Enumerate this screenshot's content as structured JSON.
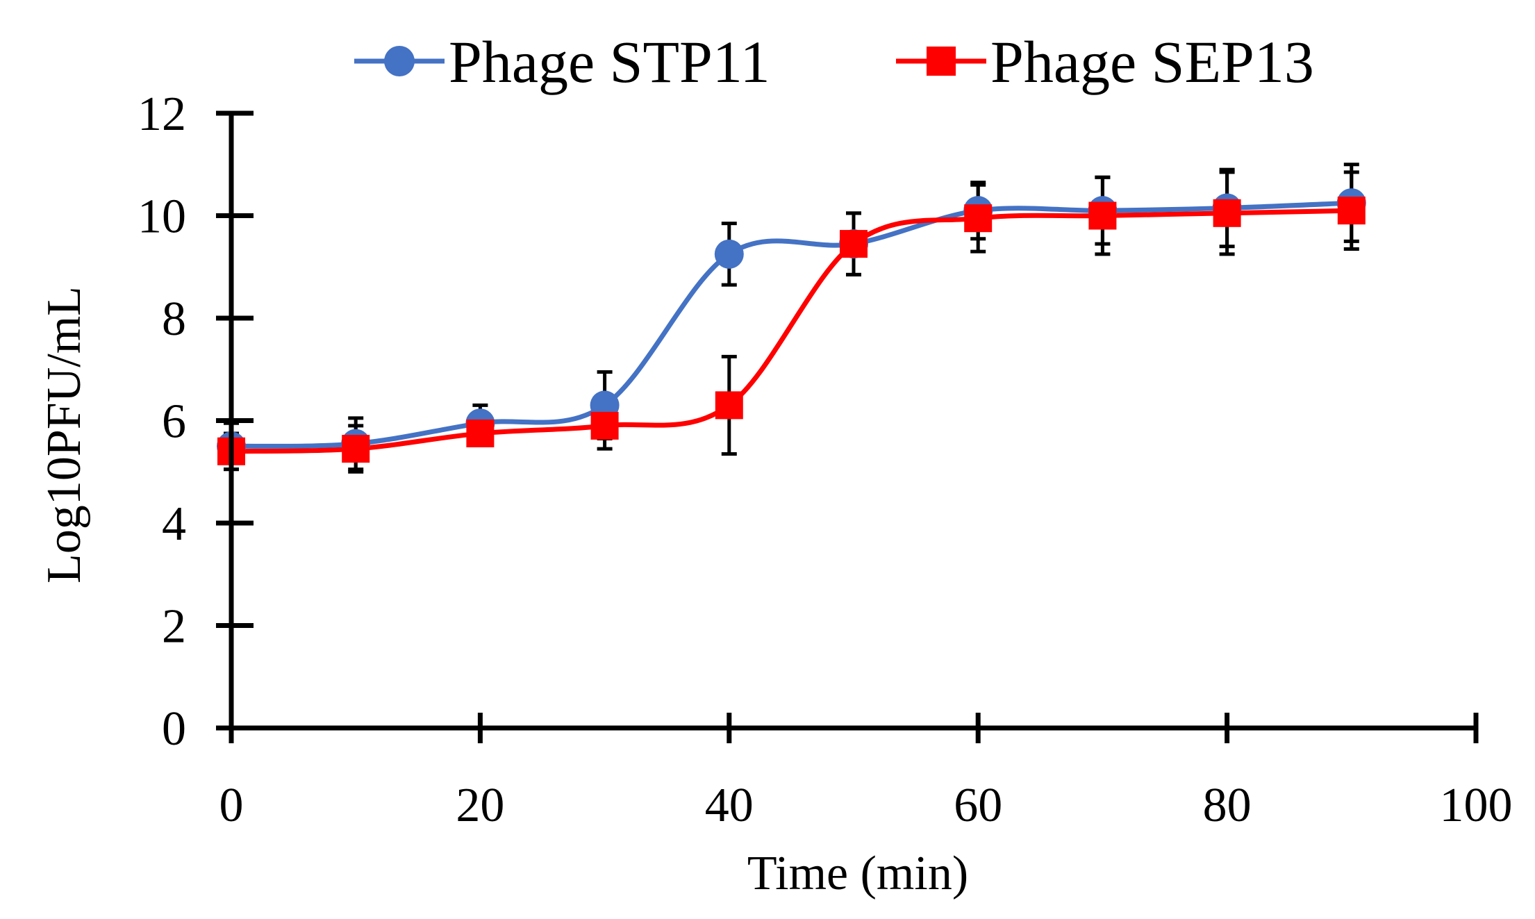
{
  "chart_data": {
    "type": "line",
    "title": "",
    "xlabel": "Time (min)",
    "ylabel": "Log10PFU/mL",
    "xlim": [
      0,
      100
    ],
    "ylim": [
      0,
      12
    ],
    "xticks": [
      0,
      20,
      40,
      60,
      80,
      100
    ],
    "yticks": [
      0,
      2,
      4,
      6,
      8,
      10,
      12
    ],
    "xtick_labels": [
      "0",
      "20",
      "40",
      "60",
      "80",
      "100"
    ],
    "ytick_labels": [
      "0",
      "2",
      "4",
      "6",
      "8",
      "10",
      "12"
    ],
    "legend_position": "top-center",
    "grid": false,
    "smooth": true,
    "series": [
      {
        "name": "Phage STP11",
        "marker": "circle",
        "color": "#4472C4",
        "x": [
          0,
          10,
          20,
          30,
          40,
          50,
          60,
          70,
          80,
          90
        ],
        "y": [
          5.5,
          5.55,
          5.95,
          6.3,
          9.25,
          9.45,
          10.1,
          10.1,
          10.15,
          10.25
        ],
        "err": [
          0.45,
          0.5,
          0.35,
          0.65,
          0.6,
          0.6,
          0.55,
          0.65,
          0.75,
          0.75
        ]
      },
      {
        "name": "Phage SEP13",
        "marker": "square",
        "color": "#FF0000",
        "x": [
          0,
          10,
          20,
          30,
          40,
          50,
          60,
          70,
          80,
          90
        ],
        "y": [
          5.4,
          5.45,
          5.75,
          5.9,
          6.3,
          9.45,
          9.95,
          10.0,
          10.05,
          10.1
        ],
        "err": [
          0.35,
          0.45,
          0.15,
          0.45,
          0.95,
          0.6,
          0.65,
          0.75,
          0.8,
          0.75
        ]
      }
    ]
  }
}
